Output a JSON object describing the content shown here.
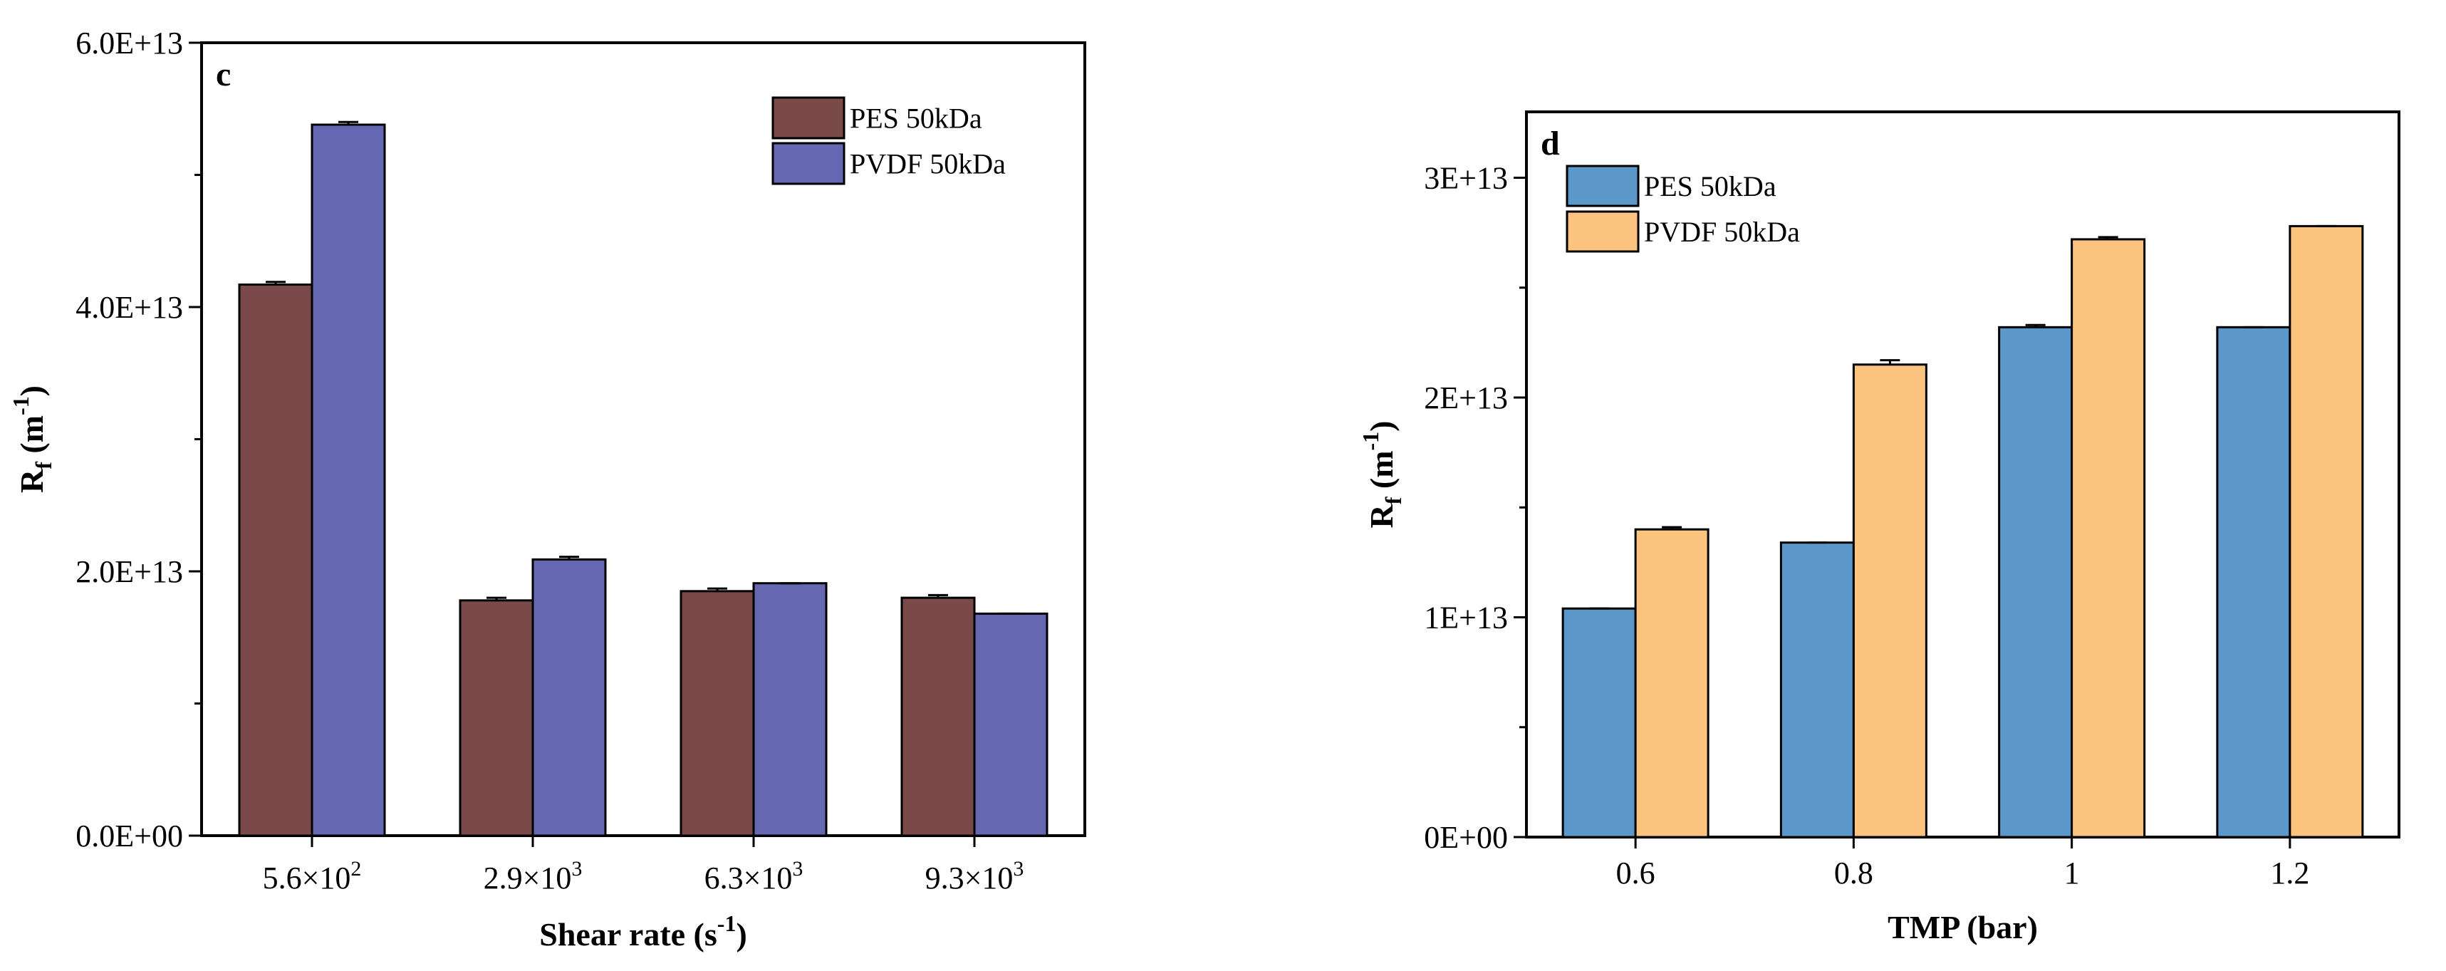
{
  "chart_data": [
    {
      "type": "bar",
      "panel_label": "c",
      "categories": [
        {
          "base": "5.6×10",
          "exp": "2"
        },
        {
          "base": "2.9×10",
          "exp": "3"
        },
        {
          "base": "6.3×10",
          "exp": "3"
        },
        {
          "base": "9.3×10",
          "exp": "3"
        }
      ],
      "series": [
        {
          "name": "PES 50kDa",
          "color": "#7a4a4a",
          "values": [
            41700000000000.0,
            17800000000000.0,
            18500000000000.0,
            18000000000000.0
          ],
          "errors": [
            200000000000.0,
            200000000000.0,
            200000000000.0,
            200000000000.0
          ]
        },
        {
          "name": "PVDF 50kDa",
          "color": "#6568b0",
          "values": [
            53800000000000.0,
            20900000000000.0,
            19100000000000.0,
            16800000000000.0
          ],
          "errors": [
            200000000000.0,
            200000000000.0,
            0.0,
            0.0
          ]
        }
      ],
      "xlabel": {
        "main": "Shear rate (s",
        "sup": "-1",
        "tail": ")"
      },
      "ylabel": {
        "main": "R",
        "sub": "f",
        "mid": " (m",
        "sup": "-1",
        "tail": ")"
      },
      "ylim": [
        0,
        60000000000000.0
      ],
      "yticks": [
        0,
        20000000000000.0,
        40000000000000.0,
        60000000000000.0
      ],
      "ytick_labels": [
        "0.0E+00",
        "2.0E+13",
        "4.0E+13",
        "6.0E+13"
      ],
      "legend_position": "top-right"
    },
    {
      "type": "bar",
      "panel_label": "d",
      "categories": [
        "0.6",
        "0.8",
        "1",
        "1.2"
      ],
      "series": [
        {
          "name": "PES 50kDa",
          "color": "#5b97c8",
          "values": [
            10400000000000.0,
            13400000000000.0,
            23200000000000.0,
            23200000000000.0
          ],
          "errors": [
            0.0,
            0.0,
            100000000000.0,
            0.0
          ]
        },
        {
          "name": "PVDF 50kDa",
          "color": "#fdc47f",
          "values": [
            14000000000000.0,
            21500000000000.0,
            27200000000000.0,
            27800000000000.0
          ],
          "errors": [
            100000000000.0,
            200000000000.0,
            100000000000.0,
            0.0
          ]
        }
      ],
      "xlabel": {
        "main": "TMP (bar)"
      },
      "ylabel": {
        "main": "R",
        "sub": "f",
        "mid": " (m",
        "sup": "-1",
        "tail": ")"
      },
      "ylim": [
        0,
        33000000000000.0
      ],
      "yticks": [
        0,
        10000000000000.0,
        20000000000000.0,
        30000000000000.0
      ],
      "ytick_labels": [
        "0E+00",
        "1E+13",
        "2E+13",
        "3E+13"
      ],
      "legend_position": "top-left"
    }
  ]
}
